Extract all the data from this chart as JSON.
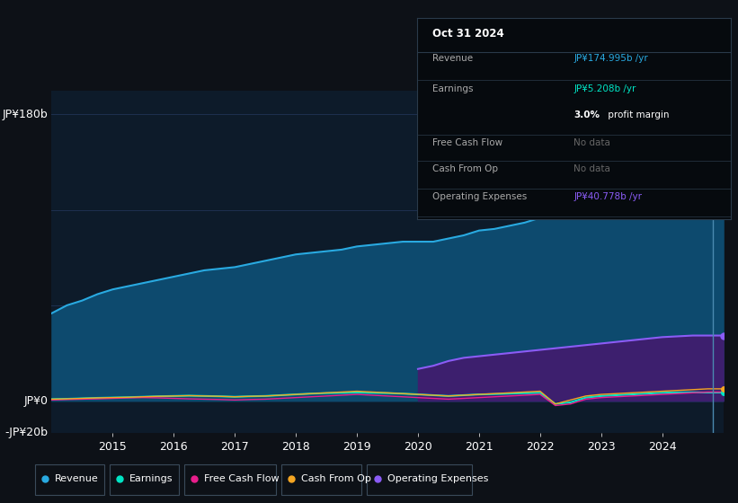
{
  "bg_color": "#0d1117",
  "plot_bg_color": "#0d1b2a",
  "grid_color": "#1e3050",
  "ylabel_top": "JP¥180b",
  "ylabel_zero": "JP¥0",
  "ylabel_bottom": "-JP¥20b",
  "ylim": [
    -20,
    195
  ],
  "years": [
    2014.0,
    2014.25,
    2014.5,
    2014.75,
    2015.0,
    2015.25,
    2015.5,
    2015.75,
    2016.0,
    2016.25,
    2016.5,
    2016.75,
    2017.0,
    2017.25,
    2017.5,
    2017.75,
    2018.0,
    2018.25,
    2018.5,
    2018.75,
    2019.0,
    2019.25,
    2019.5,
    2019.75,
    2020.0,
    2020.25,
    2020.5,
    2020.75,
    2021.0,
    2021.25,
    2021.5,
    2021.75,
    2022.0,
    2022.25,
    2022.5,
    2022.75,
    2023.0,
    2023.25,
    2023.5,
    2023.75,
    2024.0,
    2024.25,
    2024.5,
    2024.75,
    2025.0
  ],
  "revenue": [
    55,
    60,
    63,
    67,
    70,
    72,
    74,
    76,
    78,
    80,
    82,
    83,
    84,
    86,
    88,
    90,
    92,
    93,
    94,
    95,
    97,
    98,
    99,
    100,
    100,
    100,
    102,
    104,
    107,
    108,
    110,
    112,
    115,
    117,
    119,
    120,
    125,
    128,
    132,
    137,
    145,
    155,
    163,
    172,
    175
  ],
  "earnings": [
    1,
    1.2,
    1.5,
    1.8,
    2.0,
    2.2,
    2.5,
    2.8,
    3.0,
    3.2,
    3.0,
    2.8,
    2.5,
    2.8,
    3.0,
    3.5,
    4.0,
    4.5,
    4.8,
    5.0,
    5.2,
    5.0,
    4.8,
    4.5,
    4.0,
    3.5,
    3.0,
    3.5,
    4.0,
    4.2,
    4.5,
    4.8,
    5.0,
    -2.0,
    -1.0,
    2.0,
    3.0,
    3.5,
    4.0,
    4.5,
    5.0,
    5.2,
    5.3,
    5.2,
    5.2
  ],
  "free_cash_flow": [
    0.5,
    0.8,
    1.0,
    1.2,
    1.5,
    1.8,
    2.0,
    1.8,
    1.5,
    1.2,
    1.0,
    0.8,
    0.5,
    0.8,
    1.0,
    1.5,
    2.0,
    2.5,
    3.0,
    3.5,
    4.0,
    3.5,
    3.0,
    2.5,
    2.0,
    1.5,
    1.0,
    1.5,
    2.0,
    2.5,
    3.0,
    3.5,
    4.0,
    -3.0,
    -2.0,
    1.0,
    2.0,
    2.5,
    3.0,
    3.5,
    4.0,
    4.5,
    5.0,
    5.5,
    5.5
  ],
  "cash_from_op": [
    1.0,
    1.2,
    1.5,
    1.8,
    2.0,
    2.2,
    2.5,
    2.8,
    3.0,
    3.2,
    3.0,
    2.8,
    2.5,
    2.8,
    3.0,
    3.5,
    4.0,
    4.5,
    5.0,
    5.5,
    6.0,
    5.5,
    5.0,
    4.5,
    4.0,
    3.5,
    3.0,
    3.5,
    4.0,
    4.5,
    5.0,
    5.5,
    6.0,
    -2.0,
    0.5,
    3.0,
    4.0,
    4.5,
    5.0,
    5.5,
    6.0,
    6.5,
    7.0,
    7.5,
    7.5
  ],
  "operating_expenses": [
    null,
    null,
    null,
    null,
    null,
    null,
    null,
    null,
    null,
    null,
    null,
    null,
    null,
    null,
    null,
    null,
    null,
    null,
    null,
    null,
    null,
    null,
    null,
    null,
    20,
    22,
    25,
    27,
    28,
    29,
    30,
    31,
    32,
    33,
    34,
    35,
    36,
    37,
    38,
    39,
    40,
    40.5,
    41,
    41,
    41
  ],
  "revenue_color": "#29aae1",
  "revenue_fill": "#0d4a6e",
  "earnings_color": "#00e5c5",
  "free_cash_flow_color": "#e91e8c",
  "cash_from_op_color": "#f5a623",
  "operating_expenses_color": "#8b5cf6",
  "operating_expenses_fill": "#3d1f6e",
  "xticks": [
    2015,
    2016,
    2017,
    2018,
    2019,
    2020,
    2021,
    2022,
    2023,
    2024
  ],
  "legend_items": [
    "Revenue",
    "Earnings",
    "Free Cash Flow",
    "Cash From Op",
    "Operating Expenses"
  ],
  "legend_colors": [
    "#29aae1",
    "#00e5c5",
    "#e91e8c",
    "#f5a623",
    "#8b5cf6"
  ],
  "tooltip_title": "Oct 31 2024",
  "tooltip_revenue": "JP¥174.995b /yr",
  "tooltip_earnings": "JP¥5.208b /yr",
  "tooltip_margin": "3.0% profit margin",
  "tooltip_fcf": "No data",
  "tooltip_cashop": "No data",
  "tooltip_opex": "JP¥40.778b /yr",
  "revenue_color_tooltip": "#29aae1",
  "earnings_color_tooltip": "#00e5c5",
  "opex_color_tooltip": "#8b5cf6",
  "nodata_color": "#666666"
}
